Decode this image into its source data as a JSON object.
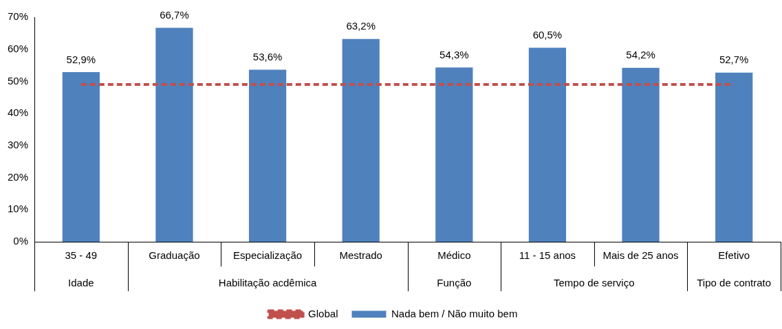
{
  "chart_data": {
    "type": "bar",
    "categories": [
      "35 - 49",
      "Graduação",
      "Especialização",
      "Mestrado",
      "Médico",
      "11 - 15 anos",
      "Mais de 25 anos",
      "Efetivo"
    ],
    "annotations": [
      "Idade",
      "Habilitação acdêmica",
      "Função",
      "Tempo de serviço",
      "Tipo de contrato"
    ],
    "series": [
      {
        "name": "Nada bem / Não muito bem",
        "color": "#4f81bd",
        "values": [
          52.9,
          66.7,
          53.6,
          63.2,
          54.3,
          60.5,
          54.2,
          52.7
        ],
        "value_labels": [
          "52,9%",
          "66,7%",
          "53,6%",
          "63,2%",
          "54,3%",
          "60,5%",
          "54,2%",
          "52,7%"
        ]
      },
      {
        "name": "Global",
        "type": "line",
        "color": "#c0504d",
        "line_style": "dashed",
        "values": [
          49,
          49,
          49,
          49,
          49,
          49,
          49,
          49
        ]
      }
    ],
    "ylim": [
      0,
      70
    ],
    "yticks": [
      {
        "value": 0,
        "label": "0%"
      },
      {
        "value": 10,
        "label": "10%"
      },
      {
        "value": 20,
        "label": "20%"
      },
      {
        "value": 30,
        "label": "30%"
      },
      {
        "value": 40,
        "label": "40%"
      },
      {
        "value": 50,
        "label": "50%"
      },
      {
        "value": 60,
        "label": "60%"
      },
      {
        "value": 70,
        "label": "70%"
      }
    ],
    "grid": false,
    "legend": "bottom",
    "marker": "none"
  }
}
